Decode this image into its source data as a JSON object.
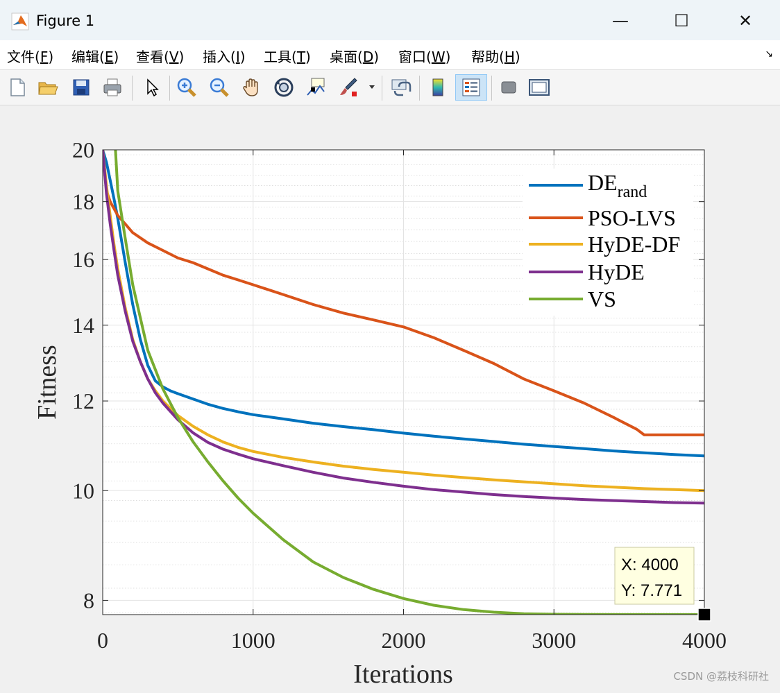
{
  "window": {
    "title": "Figure 1",
    "minimize_glyph": "—",
    "maximize_glyph": "☐",
    "close_glyph": "✕"
  },
  "menu": {
    "items": [
      {
        "label": "文件(",
        "key": "F",
        "tail": ")"
      },
      {
        "label": "编辑(",
        "key": "E",
        "tail": ")"
      },
      {
        "label": "查看(",
        "key": "V",
        "tail": ")"
      },
      {
        "label": "插入(",
        "key": "I",
        "tail": ")"
      },
      {
        "label": "工具(",
        "key": "T",
        "tail": ")"
      },
      {
        "label": "桌面(",
        "key": "D",
        "tail": ")"
      },
      {
        "label": "窗口(",
        "key": "W",
        "tail": ")"
      },
      {
        "label": "帮助(",
        "key": "H",
        "tail": ")"
      }
    ],
    "dock_glyph": "↘"
  },
  "toolbar": {
    "icons": [
      "new-figure-icon",
      "open-file-icon",
      "save-icon",
      "print-icon",
      "edit-plot-arrow-icon",
      "zoom-in-icon",
      "zoom-out-icon",
      "pan-hand-icon",
      "rotate-3d-icon",
      "data-cursor-icon",
      "brush-icon",
      "brush-dropdown-icon",
      "link-plot-icon",
      "colorbar-icon",
      "legend-icon",
      "hide-plot-tools-icon",
      "show-plot-tools-icon"
    ]
  },
  "chart_data": {
    "type": "line",
    "title": "",
    "xlabel": "Iterations",
    "ylabel": "Fitness",
    "xlim": [
      0,
      4000
    ],
    "ylim": [
      7.771,
      20
    ],
    "yscale": "log",
    "xticks": [
      0,
      1000,
      2000,
      3000,
      4000
    ],
    "xtick_labels": [
      "0",
      "1000",
      "2000",
      "3000",
      "4000"
    ],
    "yticks": [
      8,
      10,
      12,
      14,
      16,
      18,
      20
    ],
    "ytick_labels": [
      "8",
      "10",
      "12",
      "14",
      "16",
      "18",
      "20"
    ],
    "grid": true,
    "legend_position": "top-right",
    "series": [
      {
        "name": "DE",
        "name_sub": "rand",
        "color": "#0072bd",
        "x": [
          0,
          25,
          50,
          75,
          100,
          150,
          200,
          250,
          300,
          350,
          400,
          450,
          500,
          600,
          700,
          800,
          900,
          1000,
          1200,
          1400,
          1600,
          1800,
          2000,
          2200,
          2400,
          2600,
          2800,
          3000,
          3200,
          3400,
          3600,
          3800,
          4000
        ],
        "y": [
          20,
          19.5,
          18.8,
          18.1,
          17.4,
          15.9,
          14.6,
          13.6,
          12.9,
          12.5,
          12.35,
          12.25,
          12.18,
          12.05,
          11.92,
          11.82,
          11.74,
          11.67,
          11.57,
          11.47,
          11.39,
          11.32,
          11.24,
          11.17,
          11.11,
          11.05,
          10.99,
          10.94,
          10.89,
          10.84,
          10.8,
          10.76,
          10.73
        ]
      },
      {
        "name": "PSO-LVS",
        "color": "#d95319",
        "x": [
          0,
          25,
          50,
          100,
          150,
          200,
          300,
          400,
          500,
          600,
          700,
          800,
          900,
          1000,
          1200,
          1400,
          1600,
          1800,
          2000,
          2200,
          2400,
          2600,
          2800,
          3000,
          3200,
          3400,
          3550,
          3600,
          4000
        ],
        "y": [
          20,
          18.4,
          18.0,
          17.5,
          17.2,
          16.9,
          16.55,
          16.3,
          16.05,
          15.9,
          15.7,
          15.5,
          15.35,
          15.2,
          14.9,
          14.6,
          14.35,
          14.15,
          13.95,
          13.65,
          13.3,
          12.95,
          12.55,
          12.25,
          11.95,
          11.6,
          11.33,
          11.2,
          11.2
        ]
      },
      {
        "name": "HyDE-DF",
        "color": "#edb120",
        "x": [
          0,
          25,
          50,
          75,
          100,
          150,
          200,
          250,
          300,
          350,
          400,
          500,
          600,
          700,
          800,
          900,
          1000,
          1200,
          1400,
          1600,
          1800,
          2000,
          2200,
          2400,
          2600,
          2800,
          3000,
          3200,
          3400,
          3600,
          3800,
          4000
        ],
        "y": [
          20,
          18.6,
          17.5,
          16.5,
          15.7,
          14.5,
          13.6,
          13.0,
          12.55,
          12.25,
          12.0,
          11.65,
          11.4,
          11.2,
          11.04,
          10.92,
          10.83,
          10.7,
          10.6,
          10.51,
          10.44,
          10.38,
          10.32,
          10.27,
          10.22,
          10.18,
          10.14,
          10.1,
          10.07,
          10.04,
          10.02,
          10.0
        ]
      },
      {
        "name": "HyDE",
        "color": "#7e2f8e",
        "x": [
          0,
          25,
          50,
          75,
          100,
          150,
          200,
          250,
          300,
          350,
          400,
          500,
          600,
          700,
          800,
          900,
          1000,
          1200,
          1400,
          1600,
          1800,
          2000,
          2200,
          2400,
          2600,
          2800,
          3000,
          3200,
          3400,
          3600,
          3800,
          4000
        ],
        "y": [
          20,
          18.3,
          17.2,
          16.3,
          15.5,
          14.4,
          13.55,
          13.0,
          12.55,
          12.2,
          11.95,
          11.55,
          11.25,
          11.03,
          10.88,
          10.77,
          10.67,
          10.52,
          10.38,
          10.26,
          10.17,
          10.09,
          10.02,
          9.97,
          9.92,
          9.88,
          9.85,
          9.82,
          9.8,
          9.78,
          9.76,
          9.75
        ]
      },
      {
        "name": "VS",
        "color": "#77ac30",
        "x": [
          85,
          100,
          150,
          200,
          300,
          400,
          500,
          600,
          700,
          800,
          900,
          1000,
          1200,
          1400,
          1600,
          1800,
          2000,
          2200,
          2400,
          2600,
          2800,
          3000,
          3200,
          3500,
          4000
        ],
        "y": [
          20,
          18.4,
          16.7,
          15.2,
          13.3,
          12.3,
          11.6,
          11.05,
          10.6,
          10.2,
          9.85,
          9.55,
          9.05,
          8.65,
          8.38,
          8.18,
          8.03,
          7.92,
          7.85,
          7.81,
          7.785,
          7.776,
          7.773,
          7.772,
          7.771
        ]
      }
    ],
    "datatip": {
      "x_label": "X: 4000",
      "y_label": "Y: 7.771",
      "x": 4000,
      "y": 7.771
    }
  },
  "watermark": "CSDN @荔枝科研社"
}
